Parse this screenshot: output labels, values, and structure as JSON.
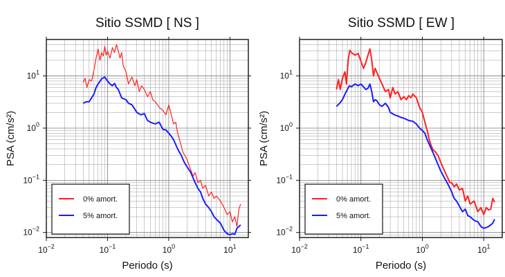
{
  "chart_data": [
    {
      "type": "line",
      "title": "Sitio SSMD [ NS ]",
      "xlabel": "Periodo (s)",
      "ylabel": "PSA (cm/s²)",
      "xscale": "log",
      "yscale": "log",
      "xlim": [
        0.01,
        20
      ],
      "ylim": [
        0.008,
        50
      ],
      "grid": true,
      "legend_position": "bottom-left",
      "xticks": [
        {
          "value": 0.01,
          "base": "10",
          "exp": "−2"
        },
        {
          "value": 0.1,
          "base": "10",
          "exp": "−1"
        },
        {
          "value": 1,
          "base": "10",
          "exp": "0"
        },
        {
          "value": 10,
          "base": "10",
          "exp": "1"
        }
      ],
      "yticks": [
        {
          "value": 0.01,
          "base": "10",
          "exp": "−2"
        },
        {
          "value": 0.1,
          "base": "10",
          "exp": "−1"
        },
        {
          "value": 1,
          "base": "10",
          "exp": "0"
        },
        {
          "value": 10,
          "base": "10",
          "exp": "1"
        }
      ],
      "series": [
        {
          "name": "0% amort.",
          "color": "#ff2020",
          "width": 1.2,
          "points": [
            [
              0.04,
              7.5
            ],
            [
              0.043,
              9.0
            ],
            [
              0.046,
              6.0
            ],
            [
              0.05,
              8.5
            ],
            [
              0.055,
              8.0
            ],
            [
              0.06,
              13.0
            ],
            [
              0.065,
              22.0
            ],
            [
              0.07,
              33.0
            ],
            [
              0.075,
              20.0
            ],
            [
              0.08,
              28.0
            ],
            [
              0.085,
              24.0
            ],
            [
              0.09,
              37.0
            ],
            [
              0.095,
              25.0
            ],
            [
              0.1,
              30.0
            ],
            [
              0.11,
              22.0
            ],
            [
              0.12,
              35.0
            ],
            [
              0.13,
              28.0
            ],
            [
              0.14,
              40.0
            ],
            [
              0.15,
              30.0
            ],
            [
              0.16,
              22.0
            ],
            [
              0.17,
              28.0
            ],
            [
              0.18,
              16.0
            ],
            [
              0.2,
              12.0
            ],
            [
              0.22,
              7.0
            ],
            [
              0.25,
              9.5
            ],
            [
              0.28,
              6.5
            ],
            [
              0.3,
              8.5
            ],
            [
              0.33,
              5.0
            ],
            [
              0.36,
              6.5
            ],
            [
              0.4,
              5.5
            ],
            [
              0.45,
              4.0
            ],
            [
              0.5,
              5.0
            ],
            [
              0.55,
              3.5
            ],
            [
              0.6,
              3.2
            ],
            [
              0.7,
              2.5
            ],
            [
              0.8,
              2.2
            ],
            [
              0.9,
              1.8
            ],
            [
              1.0,
              2.8
            ],
            [
              1.1,
              1.8
            ],
            [
              1.2,
              1.2
            ],
            [
              1.3,
              1.3
            ],
            [
              1.4,
              0.8
            ],
            [
              1.5,
              0.6
            ],
            [
              1.7,
              0.35
            ],
            [
              2.0,
              0.25
            ],
            [
              2.2,
              0.18
            ],
            [
              2.5,
              0.12
            ],
            [
              2.7,
              0.14
            ],
            [
              3.0,
              0.09
            ],
            [
              3.3,
              0.1
            ],
            [
              3.6,
              0.07
            ],
            [
              4.0,
              0.08
            ],
            [
              4.5,
              0.05
            ],
            [
              5.0,
              0.06
            ],
            [
              5.5,
              0.045
            ],
            [
              6.0,
              0.05
            ],
            [
              7.0,
              0.04
            ],
            [
              8.0,
              0.03
            ],
            [
              9.0,
              0.022
            ],
            [
              10.0,
              0.025
            ],
            [
              11.0,
              0.016
            ],
            [
              12.0,
              0.02
            ],
            [
              13.0,
              0.013
            ],
            [
              14.0,
              0.028
            ],
            [
              15.0,
              0.035
            ]
          ]
        },
        {
          "name": "5% amort.",
          "color": "#1a1aff",
          "width": 2.0,
          "points": [
            [
              0.04,
              3.0
            ],
            [
              0.045,
              3.2
            ],
            [
              0.05,
              3.2
            ],
            [
              0.055,
              3.8
            ],
            [
              0.06,
              4.5
            ],
            [
              0.065,
              6.0
            ],
            [
              0.07,
              7.0
            ],
            [
              0.08,
              8.8
            ],
            [
              0.09,
              9.5
            ],
            [
              0.1,
              8.0
            ],
            [
              0.11,
              7.0
            ],
            [
              0.12,
              6.5
            ],
            [
              0.13,
              7.2
            ],
            [
              0.14,
              6.0
            ],
            [
              0.15,
              5.5
            ],
            [
              0.17,
              3.8
            ],
            [
              0.2,
              3.5
            ],
            [
              0.22,
              3.0
            ],
            [
              0.25,
              2.8
            ],
            [
              0.28,
              2.3
            ],
            [
              0.3,
              2.0
            ],
            [
              0.35,
              1.8
            ],
            [
              0.4,
              1.9
            ],
            [
              0.45,
              1.4
            ],
            [
              0.5,
              1.3
            ],
            [
              0.6,
              1.2
            ],
            [
              0.7,
              1.3
            ],
            [
              0.8,
              0.95
            ],
            [
              0.9,
              0.92
            ],
            [
              1.0,
              0.8
            ],
            [
              1.1,
              0.7
            ],
            [
              1.2,
              0.6
            ],
            [
              1.4,
              0.4
            ],
            [
              1.6,
              0.3
            ],
            [
              1.8,
              0.22
            ],
            [
              2.0,
              0.18
            ],
            [
              2.3,
              0.14
            ],
            [
              2.6,
              0.1
            ],
            [
              3.0,
              0.07
            ],
            [
              3.3,
              0.06
            ],
            [
              3.6,
              0.045
            ],
            [
              4.0,
              0.035
            ],
            [
              4.5,
              0.03
            ],
            [
              5.0,
              0.025
            ],
            [
              5.5,
              0.02
            ],
            [
              6.0,
              0.018
            ],
            [
              7.0,
              0.015
            ],
            [
              8.0,
              0.011
            ],
            [
              9.0,
              0.0095
            ],
            [
              10.0,
              0.009
            ],
            [
              11.0,
              0.0095
            ],
            [
              12.0,
              0.0092
            ],
            [
              13.0,
              0.012
            ],
            [
              14.0,
              0.013
            ],
            [
              15.0,
              0.014
            ]
          ]
        }
      ]
    },
    {
      "type": "line",
      "title": "Sitio SSMD [ EW ]",
      "xlabel": "Periodo (s)",
      "ylabel": "PSA (cm/s²)",
      "xscale": "log",
      "yscale": "log",
      "xlim": [
        0.01,
        20
      ],
      "ylim": [
        0.008,
        50
      ],
      "grid": true,
      "legend_position": "bottom-left",
      "xticks": [
        {
          "value": 0.01,
          "base": "10",
          "exp": "−2"
        },
        {
          "value": 0.1,
          "base": "10",
          "exp": "−1"
        },
        {
          "value": 1,
          "base": "10",
          "exp": "0"
        },
        {
          "value": 10,
          "base": "10",
          "exp": "1"
        }
      ],
      "yticks": [
        {
          "value": 0.01,
          "base": "10",
          "exp": "−2"
        },
        {
          "value": 0.1,
          "base": "10",
          "exp": "−1"
        },
        {
          "value": 1,
          "base": "10",
          "exp": "0"
        },
        {
          "value": 10,
          "base": "10",
          "exp": "1"
        }
      ],
      "series": [
        {
          "name": "0% amort.",
          "color": "#ff2020",
          "width": 2.0,
          "points": [
            [
              0.04,
              5.5
            ],
            [
              0.043,
              8.5
            ],
            [
              0.046,
              5.5
            ],
            [
              0.05,
              9.0
            ],
            [
              0.055,
              12.0
            ],
            [
              0.058,
              7.0
            ],
            [
              0.062,
              20.0
            ],
            [
              0.066,
              31.0
            ],
            [
              0.07,
              28.0
            ],
            [
              0.08,
              25.0
            ],
            [
              0.09,
              27.0
            ],
            [
              0.1,
              19.0
            ],
            [
              0.11,
              14.0
            ],
            [
              0.12,
              18.0
            ],
            [
              0.13,
              25.0
            ],
            [
              0.14,
              33.0
            ],
            [
              0.15,
              20.0
            ],
            [
              0.16,
              10.0
            ],
            [
              0.17,
              14.0
            ],
            [
              0.18,
              12.0
            ],
            [
              0.2,
              9.0
            ],
            [
              0.22,
              7.0
            ],
            [
              0.25,
              5.0
            ],
            [
              0.28,
              5.5
            ],
            [
              0.3,
              3.8
            ],
            [
              0.33,
              6.0
            ],
            [
              0.36,
              4.5
            ],
            [
              0.4,
              5.0
            ],
            [
              0.45,
              3.5
            ],
            [
              0.5,
              4.0
            ],
            [
              0.55,
              3.5
            ],
            [
              0.6,
              4.2
            ],
            [
              0.65,
              3.8
            ],
            [
              0.7,
              4.5
            ],
            [
              0.8,
              3.8
            ],
            [
              0.9,
              2.5
            ],
            [
              1.0,
              2.0
            ],
            [
              1.1,
              1.3
            ],
            [
              1.2,
              0.9
            ],
            [
              1.3,
              0.6
            ],
            [
              1.4,
              0.45
            ],
            [
              1.5,
              0.38
            ],
            [
              1.6,
              0.36
            ],
            [
              1.8,
              0.3
            ],
            [
              2.0,
              0.22
            ],
            [
              2.3,
              0.15
            ],
            [
              2.6,
              0.11
            ],
            [
              2.8,
              0.09
            ],
            [
              3.0,
              0.09
            ],
            [
              3.3,
              0.075
            ],
            [
              3.6,
              0.085
            ],
            [
              4.0,
              0.065
            ],
            [
              4.5,
              0.07
            ],
            [
              5.0,
              0.04
            ],
            [
              5.5,
              0.05
            ],
            [
              6.0,
              0.035
            ],
            [
              7.0,
              0.04
            ],
            [
              8.0,
              0.025
            ],
            [
              9.0,
              0.03
            ],
            [
              10.0,
              0.022
            ],
            [
              11.0,
              0.03
            ],
            [
              12.0,
              0.027
            ],
            [
              13.0,
              0.028
            ],
            [
              14.0,
              0.045
            ],
            [
              15.0,
              0.038
            ]
          ]
        },
        {
          "name": "5% amort.",
          "color": "#1a1aff",
          "width": 2.0,
          "points": [
            [
              0.04,
              2.6
            ],
            [
              0.045,
              3.0
            ],
            [
              0.05,
              3.5
            ],
            [
              0.055,
              4.5
            ],
            [
              0.06,
              5.5
            ],
            [
              0.065,
              6.5
            ],
            [
              0.07,
              6.2
            ],
            [
              0.08,
              7.0
            ],
            [
              0.09,
              6.5
            ],
            [
              0.1,
              7.0
            ],
            [
              0.11,
              6.2
            ],
            [
              0.12,
              5.5
            ],
            [
              0.13,
              5.8
            ],
            [
              0.14,
              7.0
            ],
            [
              0.15,
              5.0
            ],
            [
              0.16,
              3.2
            ],
            [
              0.17,
              3.5
            ],
            [
              0.18,
              3.4
            ],
            [
              0.2,
              2.8
            ],
            [
              0.22,
              2.6
            ],
            [
              0.25,
              3.0
            ],
            [
              0.28,
              2.5
            ],
            [
              0.3,
              2.0
            ],
            [
              0.35,
              1.8
            ],
            [
              0.4,
              1.7
            ],
            [
              0.45,
              1.6
            ],
            [
              0.5,
              1.55
            ],
            [
              0.6,
              1.4
            ],
            [
              0.7,
              1.35
            ],
            [
              0.8,
              1.2
            ],
            [
              0.9,
              1.0
            ],
            [
              1.0,
              0.9
            ],
            [
              1.1,
              0.8
            ],
            [
              1.2,
              0.6
            ],
            [
              1.4,
              0.4
            ],
            [
              1.6,
              0.28
            ],
            [
              1.8,
              0.2
            ],
            [
              2.0,
              0.15
            ],
            [
              2.3,
              0.11
            ],
            [
              2.6,
              0.085
            ],
            [
              3.0,
              0.06
            ],
            [
              3.3,
              0.045
            ],
            [
              3.6,
              0.04
            ],
            [
              4.0,
              0.032
            ],
            [
              4.5,
              0.025
            ],
            [
              5.0,
              0.028
            ],
            [
              5.5,
              0.021
            ],
            [
              6.0,
              0.02
            ],
            [
              7.0,
              0.017
            ],
            [
              8.0,
              0.016
            ],
            [
              9.0,
              0.013
            ],
            [
              10.0,
              0.012
            ],
            [
              11.0,
              0.0125
            ],
            [
              12.0,
              0.013
            ],
            [
              13.0,
              0.014
            ],
            [
              14.0,
              0.015
            ],
            [
              15.0,
              0.018
            ]
          ]
        }
      ]
    }
  ]
}
